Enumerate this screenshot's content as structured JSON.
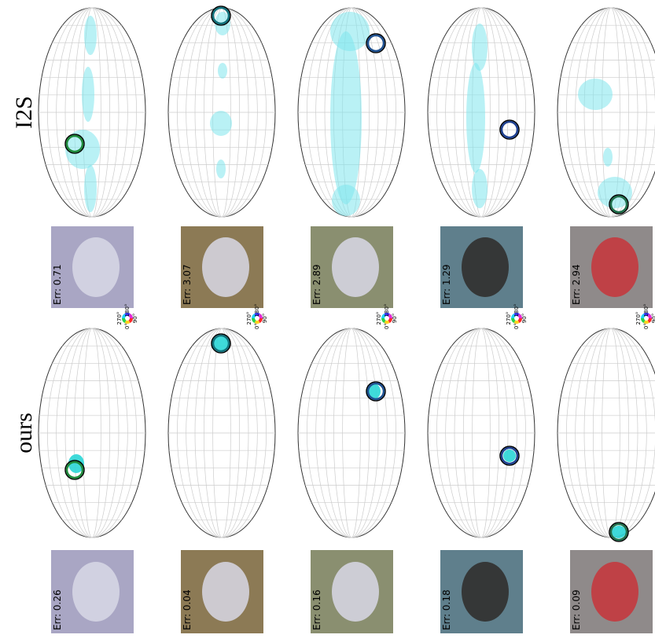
{
  "rows": [
    {
      "method": "I2S",
      "errors": [
        "Err: 0.71",
        "Err: 3.07",
        "Err: 2.89",
        "Err: 1.29",
        "Err: 2.94"
      ]
    },
    {
      "method": "ours",
      "errors": [
        "Err: 0.26",
        "Err: 0.04",
        "Err: 0.16",
        "Err: 0.18",
        "Err: 0.09"
      ]
    }
  ],
  "legend": {
    "top": "180°",
    "left": "270°",
    "right": "90°",
    "bottom": "0°"
  }
}
